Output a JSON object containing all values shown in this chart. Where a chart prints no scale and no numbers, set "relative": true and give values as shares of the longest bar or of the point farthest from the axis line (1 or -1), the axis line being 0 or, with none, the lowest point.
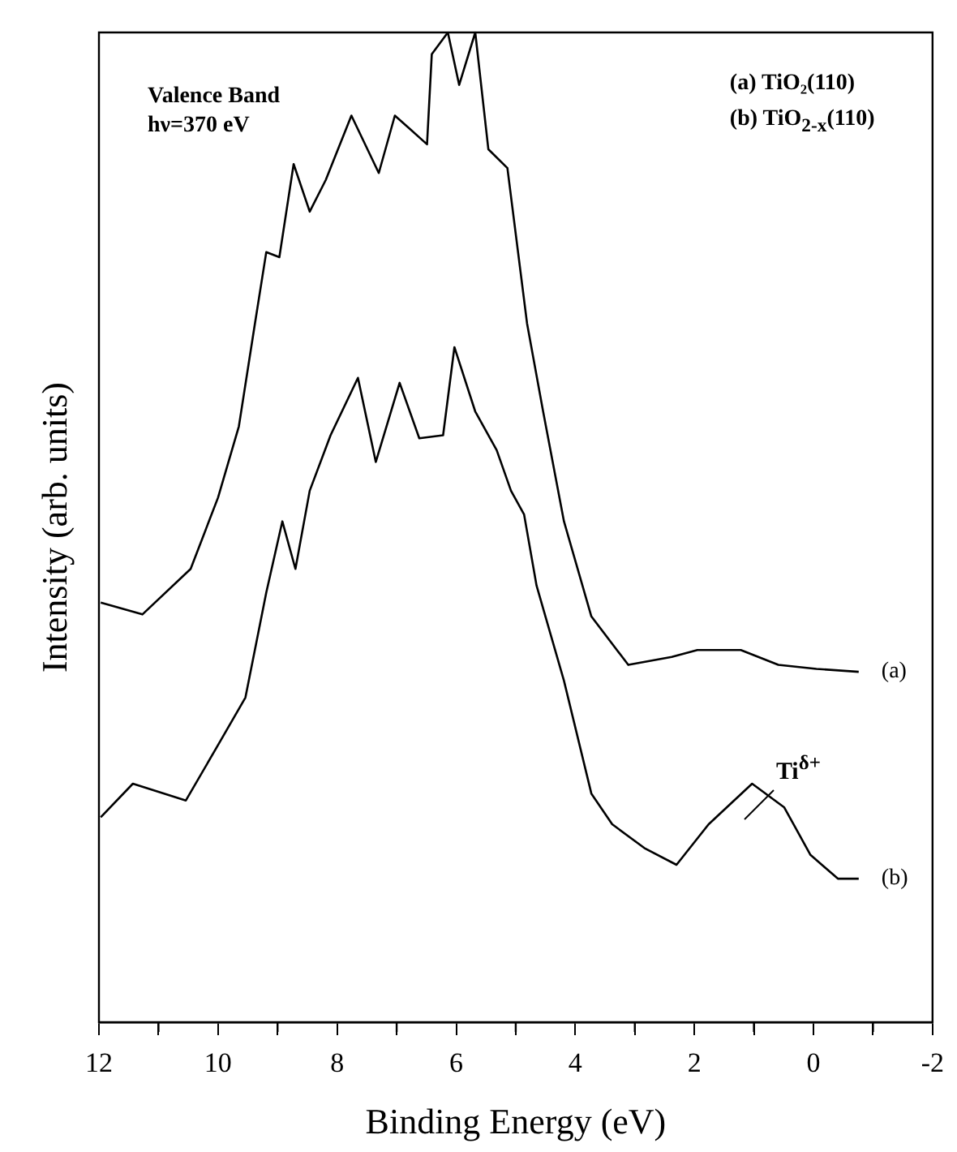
{
  "chart_data": {
    "type": "line",
    "xlabel": "Binding Energy (eV)",
    "ylabel": "Intensity (arb. units)",
    "relative": true,
    "xlim": [
      12,
      -2
    ],
    "xticks": [
      12,
      {
        "value": 11,
        "label": null
      },
      10,
      {
        "value": 9,
        "label": null
      },
      8,
      {
        "value": 7,
        "label": null
      },
      6,
      {
        "value": 5,
        "label": null
      },
      4,
      {
        "value": 3,
        "label": null
      },
      2,
      {
        "value": 1,
        "label": null
      },
      0,
      {
        "value": -1,
        "label": null
      },
      -2
    ],
    "tick_labels": "x",
    "grid": false,
    "legend": false,
    "marker": "none",
    "line_style": "solid",
    "annotations": [
      "Valence Band",
      "hν=370 eV",
      "(a) TiO₂(110)",
      "(b) TiO$_{2-x}$(110)",
      {
        "text": "Ti$^{δ+}$",
        "x": 0.9,
        "y": 0.22
      }
    ],
    "series": [
      {
        "name": "(a)",
        "color": "#000000",
        "x": [
          11.97,
          11.27,
          10.46,
          10.0,
          9.65,
          9.38,
          9.19,
          8.97,
          8.73,
          8.46,
          8.19,
          7.76,
          7.3,
          7.03,
          6.49,
          6.41,
          6.14,
          5.95,
          5.68,
          5.46,
          5.14,
          4.81,
          4.54,
          4.19,
          3.73,
          3.11,
          2.38,
          1.95,
          1.22,
          0.59,
          -0.05,
          -0.76
        ],
        "values": [
          0.424,
          0.412,
          0.458,
          0.53,
          0.602,
          0.706,
          0.778,
          0.773,
          0.867,
          0.819,
          0.851,
          0.916,
          0.858,
          0.916,
          0.887,
          0.978,
          1.0,
          0.947,
          1.0,
          0.882,
          0.863,
          0.706,
          0.617,
          0.506,
          0.41,
          0.361,
          0.369,
          0.376,
          0.376,
          0.361,
          0.357,
          0.354
        ]
      },
      {
        "name": "(b)",
        "color": "#000000",
        "x": [
          11.97,
          11.43,
          10.54,
          10.0,
          9.54,
          9.19,
          8.92,
          8.7,
          8.46,
          8.11,
          7.65,
          7.35,
          6.95,
          6.62,
          6.22,
          6.03,
          5.68,
          5.32,
          5.08,
          4.86,
          4.65,
          4.19,
          3.73,
          3.38,
          2.84,
          2.3,
          1.76,
          1.03,
          0.49,
          0.05,
          -0.41,
          -0.76
        ],
        "values": [
          0.207,
          0.241,
          0.224,
          0.28,
          0.328,
          0.434,
          0.506,
          0.458,
          0.537,
          0.593,
          0.651,
          0.566,
          0.646,
          0.59,
          0.593,
          0.682,
          0.617,
          0.578,
          0.537,
          0.513,
          0.441,
          0.345,
          0.231,
          0.2,
          0.176,
          0.159,
          0.2,
          0.241,
          0.217,
          0.169,
          0.145,
          0.145
        ]
      }
    ]
  }
}
